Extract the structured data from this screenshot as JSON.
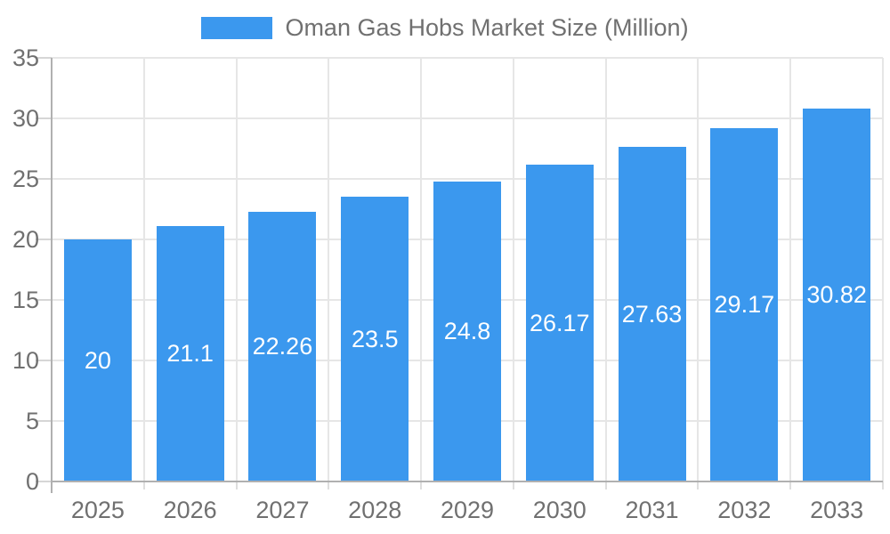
{
  "chart_data": {
    "type": "bar",
    "title": "Oman Gas Hobs Market Size (Million)",
    "legend": {
      "position": "top-center",
      "entries": [
        "Oman Gas Hobs Market Size (Million)"
      ]
    },
    "categories": [
      "2025",
      "2026",
      "2027",
      "2028",
      "2029",
      "2030",
      "2031",
      "2032",
      "2033"
    ],
    "series": [
      {
        "name": "Oman Gas Hobs Market Size (Million)",
        "values": [
          20,
          21.1,
          22.26,
          23.5,
          24.8,
          26.17,
          27.63,
          29.17,
          30.82
        ],
        "bar_labels": [
          "20",
          "21.1",
          "22.26",
          "23.5",
          "24.8",
          "26.17",
          "27.63",
          "29.17",
          "30.82"
        ]
      }
    ],
    "xlabel": "",
    "ylabel": "",
    "ylim": [
      0,
      35
    ],
    "ytick_step": 5,
    "ytick_labels": [
      "0",
      "5",
      "10",
      "15",
      "20",
      "25",
      "30",
      "35"
    ],
    "grid": "horizontal-and-vertical",
    "bar_label_position": "inside-center",
    "colors": {
      "bar": "#3b98ee",
      "bar_label_text": "#ffffff",
      "axis_text": "#707070",
      "gridline": "#e6e6e6",
      "tick": "#d6d6d6",
      "axis_line": "#b0b0b0",
      "background": "#ffffff"
    }
  }
}
